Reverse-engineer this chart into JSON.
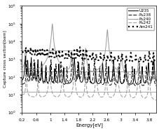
{
  "xlabel": "Energy[eV]",
  "ylabel": "Capture cross section[barn]",
  "xlim": [
    0.2,
    4.0
  ],
  "ylim": [
    1.0,
    1000000.0
  ],
  "legend_entries": [
    "U235",
    "Pu238",
    "Pu240",
    "Pu242",
    "Am241"
  ],
  "hlines": [
    3000,
    200,
    15
  ],
  "hline_color": "#999999",
  "background": "#ffffff",
  "xticks": [
    0.2,
    0.6,
    1.0,
    1.4,
    1.8,
    2.2,
    2.6,
    3.0,
    3.4,
    3.8
  ]
}
